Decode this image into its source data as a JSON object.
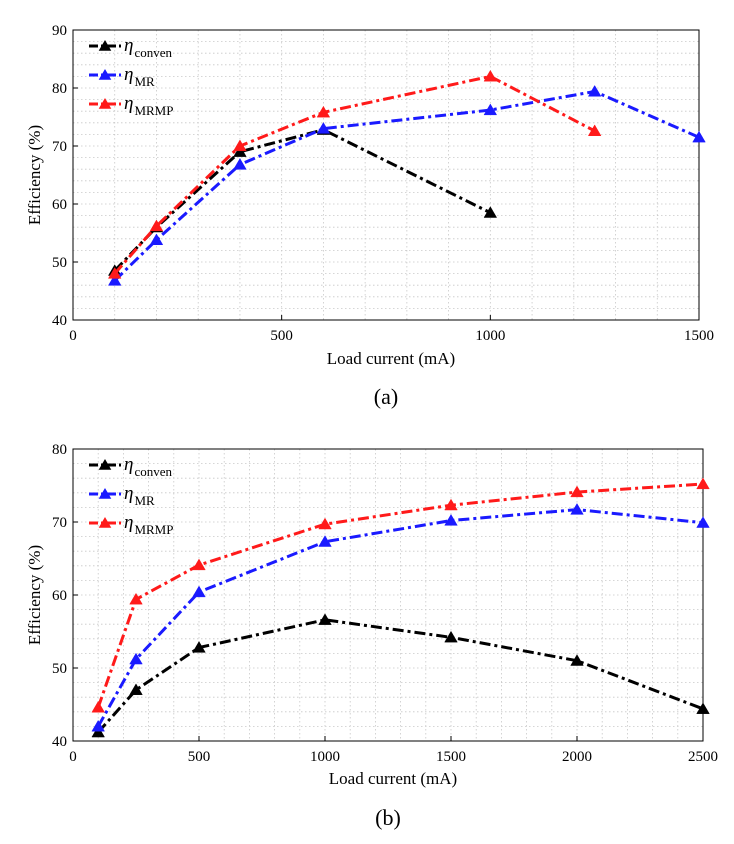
{
  "chart_data": [
    {
      "type": "line",
      "caption": "(a)",
      "xlabel": "Load current (mA)",
      "ylabel": "Efficiency (%)",
      "xlim": [
        0,
        1500
      ],
      "ylim": [
        40,
        90
      ],
      "xticks": [
        0,
        500,
        1000,
        1500
      ],
      "yticks": [
        40,
        50,
        60,
        70,
        80,
        90
      ],
      "grid": true,
      "legend_position": "top-left",
      "series": [
        {
          "symbol": "η",
          "subscript": "conven",
          "color": "#000000",
          "linestyle": "dashdot",
          "marker": "triangle",
          "x": [
            100,
            200,
            400,
            600,
            1000
          ],
          "y": [
            48.5,
            56,
            69,
            72.8,
            58.5
          ]
        },
        {
          "symbol": "η",
          "subscript": "MR",
          "color": "#1a1aff",
          "linestyle": "dashdot",
          "marker": "triangle",
          "x": [
            100,
            200,
            400,
            600,
            1000,
            1250,
            1500
          ],
          "y": [
            46.8,
            53.8,
            66.8,
            73,
            76.2,
            79.4,
            71.5
          ]
        },
        {
          "symbol": "η",
          "subscript": "MRMP",
          "color": "#ff1a1a",
          "linestyle": "dashdot",
          "marker": "triangle",
          "x": [
            100,
            200,
            400,
            600,
            1000,
            1250
          ],
          "y": [
            48,
            56.2,
            70,
            75.8,
            82,
            72.6
          ]
        }
      ]
    },
    {
      "type": "line",
      "caption": "(b)",
      "xlabel": "Load current (mA)",
      "ylabel": "Efficiency (%)",
      "xlim": [
        0,
        2500
      ],
      "ylim": [
        40,
        80
      ],
      "xticks": [
        0,
        500,
        1000,
        1500,
        2000,
        2500
      ],
      "yticks": [
        40,
        50,
        60,
        70,
        80
      ],
      "grid": true,
      "legend_position": "top-left",
      "series": [
        {
          "symbol": "η",
          "subscript": "conven",
          "color": "#000000",
          "linestyle": "dashdot",
          "marker": "triangle",
          "x": [
            100,
            250,
            500,
            1000,
            1500,
            2000,
            2500
          ],
          "y": [
            41.2,
            47,
            52.8,
            56.6,
            54.2,
            51,
            44.4
          ]
        },
        {
          "symbol": "η",
          "subscript": "MR",
          "color": "#1a1aff",
          "linestyle": "dashdot",
          "marker": "triangle",
          "x": [
            100,
            250,
            500,
            1000,
            1500,
            2000,
            2500
          ],
          "y": [
            42,
            51.2,
            60.4,
            67.3,
            70.2,
            71.7,
            69.9
          ]
        },
        {
          "symbol": "η",
          "subscript": "MRMP",
          "color": "#ff1a1a",
          "linestyle": "dashdot",
          "marker": "triangle",
          "x": [
            100,
            250,
            500,
            1000,
            1500,
            2000,
            2500
          ],
          "y": [
            44.6,
            59.4,
            64.1,
            69.7,
            72.3,
            74.1,
            75.2
          ]
        }
      ]
    }
  ]
}
